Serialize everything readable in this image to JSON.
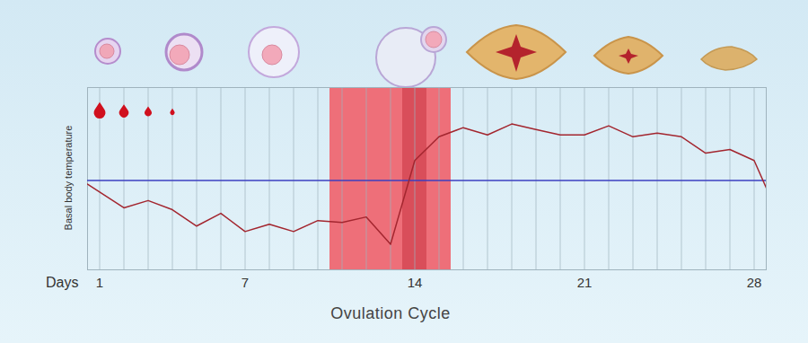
{
  "chart_data": {
    "type": "line",
    "title": "Ovulation Cycle",
    "x_label": "Days",
    "y_label": "Basal body temperature",
    "x": [
      0.5,
      2,
      3,
      4,
      5,
      6,
      7,
      8,
      9,
      10,
      11,
      12,
      13,
      14,
      15,
      16,
      17,
      18,
      19,
      20,
      21,
      22,
      23,
      24,
      25,
      26,
      27,
      28,
      28.5
    ],
    "values": [
      47,
      34,
      38,
      33,
      24,
      31,
      21,
      25,
      21,
      27,
      26,
      29,
      14,
      60,
      73,
      78,
      74,
      80,
      77,
      74,
      74,
      79,
      73,
      75,
      73,
      64,
      66,
      60,
      45
    ],
    "color": "#a3262f",
    "xlim": [
      0.5,
      28.5
    ],
    "xticks": [
      1,
      7,
      14,
      21,
      28
    ],
    "ylim": [
      0,
      100
    ],
    "tick_labels": "x",
    "grid": true,
    "reference_line": {
      "value": 49,
      "color": "#3b3fc0"
    },
    "highlight": [
      {
        "from": 10.5,
        "to": 15.5,
        "color": "#ee6f79"
      },
      {
        "from": 13.5,
        "to": 14.5,
        "color": "#d94e5a"
      }
    ],
    "menstruation": {
      "days": [
        1,
        2,
        3,
        4
      ],
      "color": "#d0101e"
    }
  }
}
